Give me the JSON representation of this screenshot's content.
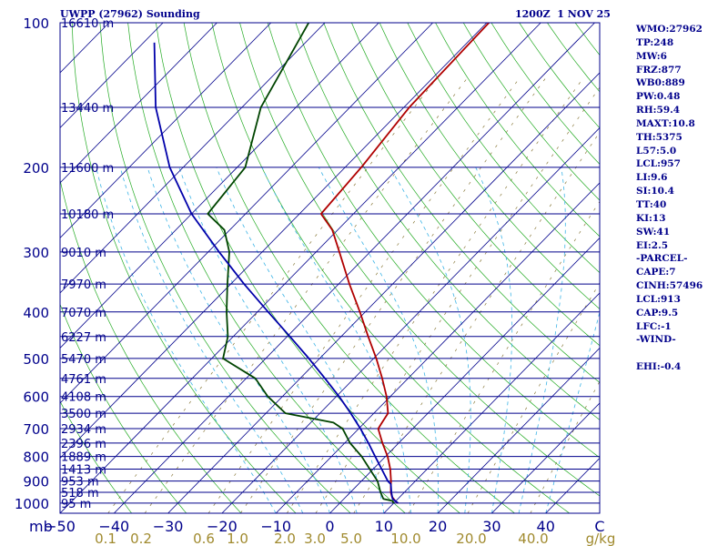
{
  "header": {
    "title_left": "UWPP (27962) Sounding",
    "title_right": "1200Z  1 NOV 25"
  },
  "indices": [
    "WMO:27962",
    "TP:248",
    "MW:6",
    "FRZ:877",
    "WB0:889",
    "PW:0.48",
    "RH:59.4",
    "MAXT:10.8",
    "TH:5375",
    "L57:5.0",
    "LCL:957",
    "LI:9.6",
    "SI:10.4",
    "TT:40",
    "KI:13",
    "SW:41",
    "EI:2.5",
    "-PARCEL-",
    "CAPE:7",
    "CINH:57496",
    "LCL:913",
    "CAP:9.5",
    "LFC:-1",
    "-WIND-",
    "",
    "EHI:-0.4"
  ],
  "chart_data": {
    "type": "skew-t",
    "title": "UWPP (27962) Sounding",
    "pressure_unit": "mb",
    "temperature_unit": "C",
    "mixing_ratio_unit": "g/kg",
    "pressure_levels": [
      {
        "p": 100,
        "label": "100",
        "height": "16610 m"
      },
      {
        "p": 150,
        "label": "",
        "height": "13440 m"
      },
      {
        "p": 200,
        "label": "200",
        "height": "11600 m"
      },
      {
        "p": 250,
        "label": "",
        "height": "10180 m"
      },
      {
        "p": 300,
        "label": "300",
        "height": "9010 m"
      },
      {
        "p": 350,
        "label": "",
        "height": "7970 m"
      },
      {
        "p": 400,
        "label": "400",
        "height": "7070 m"
      },
      {
        "p": 450,
        "label": "",
        "height": "6227 m"
      },
      {
        "p": 500,
        "label": "500",
        "height": "5470 m"
      },
      {
        "p": 550,
        "label": "",
        "height": "4761 m"
      },
      {
        "p": 600,
        "label": "600",
        "height": "4108 m"
      },
      {
        "p": 650,
        "label": "",
        "height": "3500 m"
      },
      {
        "p": 700,
        "label": "700",
        "height": "2934 m"
      },
      {
        "p": 750,
        "label": "",
        "height": "2396 m"
      },
      {
        "p": 800,
        "label": "800",
        "height": "1889 m"
      },
      {
        "p": 850,
        "label": "",
        "height": "1413 m"
      },
      {
        "p": 900,
        "label": "900",
        "height": "953 m"
      },
      {
        "p": 950,
        "label": "",
        "height": "518 m"
      },
      {
        "p": 1000,
        "label": "1000",
        "height": "95 m"
      }
    ],
    "temperature_ticks": [
      {
        "t": -50,
        "label": "−50"
      },
      {
        "t": -40,
        "label": "−40"
      },
      {
        "t": -30,
        "label": "−30"
      },
      {
        "t": -20,
        "label": "−20"
      },
      {
        "t": -10,
        "label": "−10"
      },
      {
        "t": 0,
        "label": "0"
      },
      {
        "t": 10,
        "label": "10"
      },
      {
        "t": 20,
        "label": "20"
      },
      {
        "t": 30,
        "label": "30"
      },
      {
        "t": 40,
        "label": "40"
      },
      {
        "t": 50,
        "label": "C"
      }
    ],
    "mixing_ratio_ticks": [
      {
        "w": 0.1,
        "label": "0.1"
      },
      {
        "w": 0.2,
        "label": "0.2"
      },
      {
        "w": 0.6,
        "label": "0.6"
      },
      {
        "w": 1.0,
        "label": "1.0"
      },
      {
        "w": 2.0,
        "label": "2.0"
      },
      {
        "w": 3.0,
        "label": "3.0"
      },
      {
        "w": 5.0,
        "label": "5.0"
      },
      {
        "w": 10.0,
        "label": "10.0"
      },
      {
        "w": 20.0,
        "label": "20.0"
      },
      {
        "w": 40.0,
        "label": "40.0"
      }
    ],
    "mixing_ratio_unit_label": "g/kg",
    "pressure_axis_label": "mb",
    "series": [
      {
        "name": "Temperature",
        "color": "#b00000",
        "points": [
          {
            "p": 1001,
            "t": 10.8
          },
          {
            "p": 990,
            "t": 9.9
          },
          {
            "p": 970,
            "t": 8.5
          },
          {
            "p": 950,
            "t": 7.5
          },
          {
            "p": 925,
            "t": 6.5
          },
          {
            "p": 900,
            "t": 5.5
          },
          {
            "p": 850,
            "t": 3.2
          },
          {
            "p": 800,
            "t": 0.4
          },
          {
            "p": 750,
            "t": -3.0
          },
          {
            "p": 700,
            "t": -6.4
          },
          {
            "p": 680,
            "t": -6.8
          },
          {
            "p": 650,
            "t": -7.4
          },
          {
            "p": 600,
            "t": -10.7
          },
          {
            "p": 550,
            "t": -14.8
          },
          {
            "p": 500,
            "t": -19.5
          },
          {
            "p": 450,
            "t": -25.0
          },
          {
            "p": 400,
            "t": -31.0
          },
          {
            "p": 350,
            "t": -38.0
          },
          {
            "p": 300,
            "t": -45.7
          },
          {
            "p": 270,
            "t": -51.0
          },
          {
            "p": 250,
            "t": -56.0
          },
          {
            "p": 200,
            "t": -57.0
          },
          {
            "p": 150,
            "t": -59.0
          },
          {
            "p": 100,
            "t": -59.6
          }
        ]
      },
      {
        "name": "Dewpoint",
        "color": "#004400",
        "points": [
          {
            "p": 1001,
            "t": 10.0
          },
          {
            "p": 990,
            "t": 9.4
          },
          {
            "p": 980,
            "t": 7.3
          },
          {
            "p": 950,
            "t": 5.6
          },
          {
            "p": 900,
            "t": 3.0
          },
          {
            "p": 850,
            "t": -0.6
          },
          {
            "p": 800,
            "t": -4.4
          },
          {
            "p": 750,
            "t": -9.0
          },
          {
            "p": 700,
            "t": -13.0
          },
          {
            "p": 680,
            "t": -15.8
          },
          {
            "p": 650,
            "t": -26.4
          },
          {
            "p": 600,
            "t": -32.7
          },
          {
            "p": 550,
            "t": -38.3
          },
          {
            "p": 500,
            "t": -47.9
          },
          {
            "p": 450,
            "t": -51.0
          },
          {
            "p": 400,
            "t": -55.7
          },
          {
            "p": 350,
            "t": -60.6
          },
          {
            "p": 300,
            "t": -66.1
          },
          {
            "p": 270,
            "t": -71.0
          },
          {
            "p": 250,
            "t": -77.0
          },
          {
            "p": 200,
            "t": -78.5
          },
          {
            "p": 150,
            "t": -86.5
          },
          {
            "p": 100,
            "t": -93.0
          }
        ]
      },
      {
        "name": "Parcel",
        "color": "#0000aa",
        "points": [
          {
            "p": 1000,
            "t": 10.8
          },
          {
            "p": 980,
            "t": 9.0
          },
          {
            "p": 950,
            "t": 7.6
          },
          {
            "p": 913,
            "t": 6.0
          },
          {
            "p": 900,
            "t": 4.9
          },
          {
            "p": 850,
            "t": 1.6
          },
          {
            "p": 800,
            "t": -1.9
          },
          {
            "p": 750,
            "t": -5.6
          },
          {
            "p": 700,
            "t": -9.7
          },
          {
            "p": 650,
            "t": -14.3
          },
          {
            "p": 600,
            "t": -19.5
          },
          {
            "p": 550,
            "t": -25.4
          },
          {
            "p": 500,
            "t": -32.0
          },
          {
            "p": 450,
            "t": -39.5
          },
          {
            "p": 400,
            "t": -48.0
          },
          {
            "p": 350,
            "t": -57.5
          },
          {
            "p": 300,
            "t": -68.0
          },
          {
            "p": 250,
            "t": -80.0
          },
          {
            "p": 200,
            "t": -92.5
          },
          {
            "p": 150,
            "t": -106.0
          },
          {
            "p": 110,
            "t": -118.0
          }
        ]
      }
    ]
  }
}
